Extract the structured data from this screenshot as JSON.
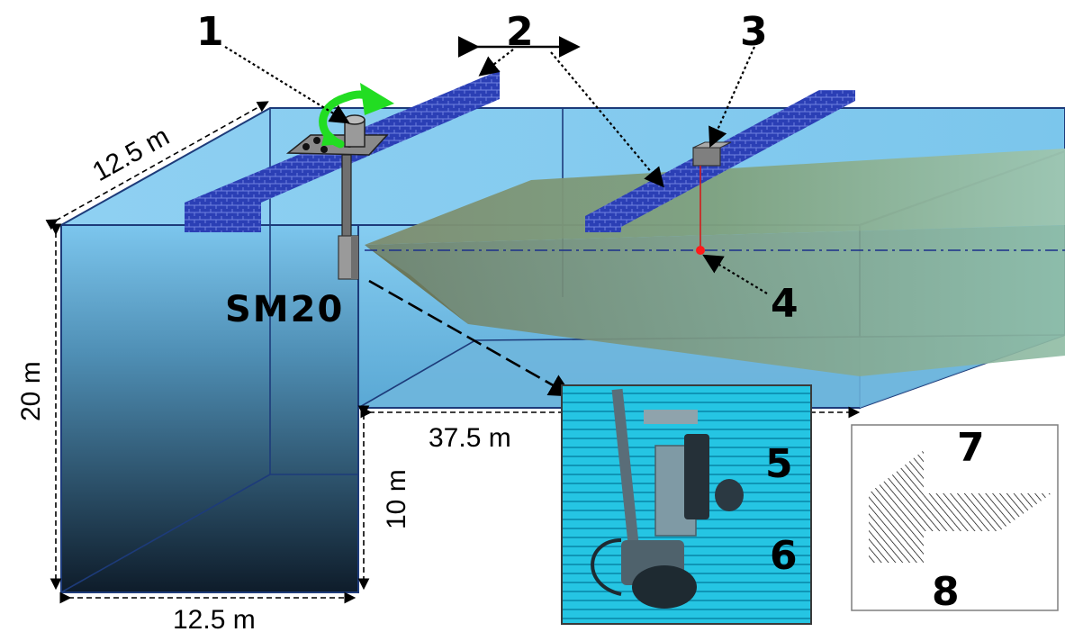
{
  "labels": {
    "n1": "1",
    "n2": "2",
    "n3": "3",
    "n4": "4",
    "n5": "5",
    "n6": "6",
    "n7": "7",
    "n8": "8",
    "sonar": "SM20"
  },
  "dimensions": {
    "top_width": "12.5 m",
    "height_deep": "20 m",
    "length": "37.5 m",
    "height_shallow": "10 m",
    "bottom_width": "12.5 m"
  },
  "colors": {
    "water_top": "#7fc7ef",
    "water_deep": "#0d1b28",
    "bridge": "#2b3fb5",
    "beam": "#6e8a6a",
    "tank_edge": "#1d3b7a",
    "arrow_green": "#22dd22",
    "target_red": "#ff1a1a",
    "photo_bg": "#22c9e6"
  }
}
